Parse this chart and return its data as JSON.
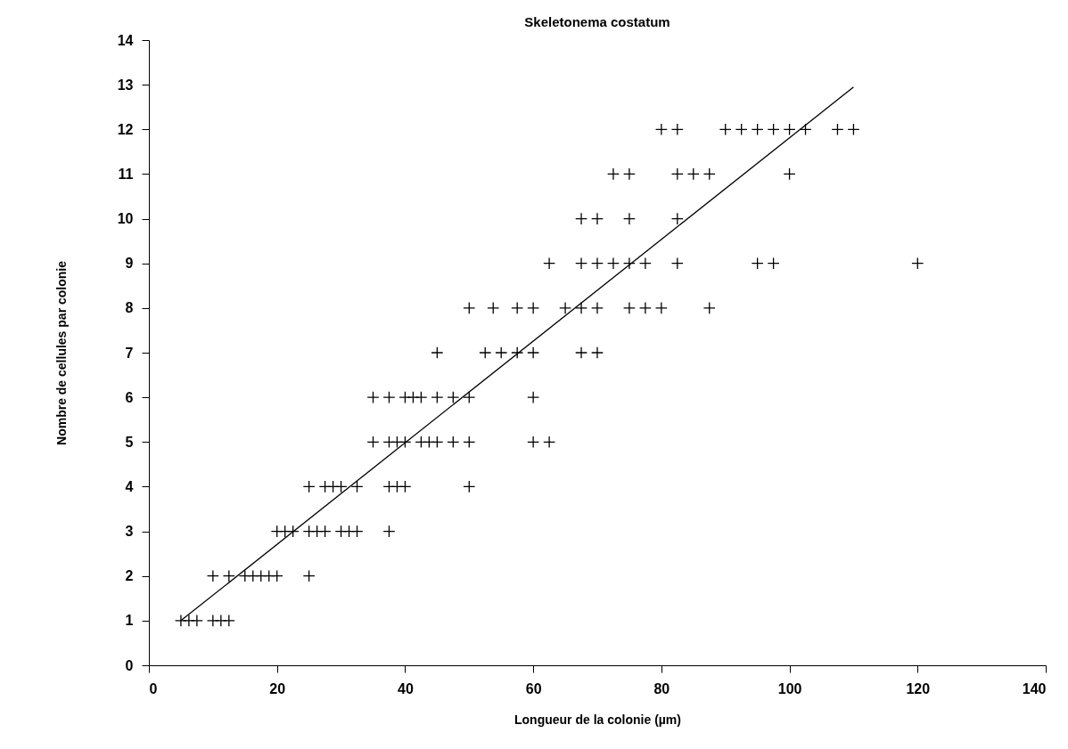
{
  "chart_data": {
    "type": "scatter",
    "title": "Skeletonema costatum",
    "xlabel": "Longueur de la colonie (µm)",
    "ylabel": "Nombre de cellules par colonie",
    "xlim": [
      0,
      140
    ],
    "xticks": [
      0,
      20,
      40,
      60,
      80,
      100,
      120,
      140
    ],
    "ylim": [
      0,
      14
    ],
    "yticks": [
      0,
      1,
      2,
      3,
      4,
      5,
      6,
      7,
      8,
      9,
      10,
      11,
      12,
      13,
      14
    ],
    "series": [
      {
        "marker": "cross",
        "color": "#000000",
        "x": [
          5,
          6.25,
          7.5,
          10,
          11.25,
          12.5,
          10,
          12.5,
          15,
          16.25,
          17.5,
          18.75,
          20,
          25,
          20,
          21.25,
          22.5,
          25,
          26.25,
          27.5,
          30,
          31.25,
          32.5,
          37.5,
          25,
          27.5,
          28.75,
          30,
          32.5,
          37.5,
          38.75,
          40,
          50,
          35,
          37.5,
          38.75,
          40,
          42.5,
          43.75,
          45,
          47.5,
          50,
          60,
          62.5,
          35,
          37.5,
          40,
          41.25,
          42.5,
          45,
          47.5,
          50,
          60,
          45,
          52.5,
          55,
          57.5,
          60,
          67.5,
          70,
          50,
          53.75,
          57.5,
          60,
          65,
          67.5,
          70,
          75,
          77.5,
          80,
          87.5,
          62.5,
          67.5,
          70,
          72.5,
          75,
          77.5,
          82.5,
          95,
          97.5,
          120,
          67.5,
          70,
          75,
          82.5,
          72.5,
          75,
          82.5,
          85,
          87.5,
          100,
          80,
          82.5,
          90,
          92.5,
          95,
          97.5,
          100,
          102.5,
          107.5,
          110
        ],
        "values": [
          1,
          1,
          1,
          1,
          1,
          1,
          2,
          2,
          2,
          2,
          2,
          2,
          2,
          2,
          3,
          3,
          3,
          3,
          3,
          3,
          3,
          3,
          3,
          3,
          4,
          4,
          4,
          4,
          4,
          4,
          4,
          4,
          4,
          5,
          5,
          5,
          5,
          5,
          5,
          5,
          5,
          5,
          5,
          5,
          6,
          6,
          6,
          6,
          6,
          6,
          6,
          6,
          6,
          7,
          7,
          7,
          7,
          7,
          7,
          7,
          8,
          8,
          8,
          8,
          8,
          8,
          8,
          8,
          8,
          8,
          8,
          9,
          9,
          9,
          9,
          9,
          9,
          9,
          9,
          9,
          9,
          10,
          10,
          10,
          10,
          11,
          11,
          11,
          11,
          11,
          11,
          12,
          12,
          12,
          12,
          12,
          12,
          12,
          12,
          12,
          12
        ]
      },
      {
        "type": "line",
        "color": "#000000",
        "x": [
          5,
          110
        ],
        "values": [
          1,
          12.95
        ]
      }
    ]
  }
}
